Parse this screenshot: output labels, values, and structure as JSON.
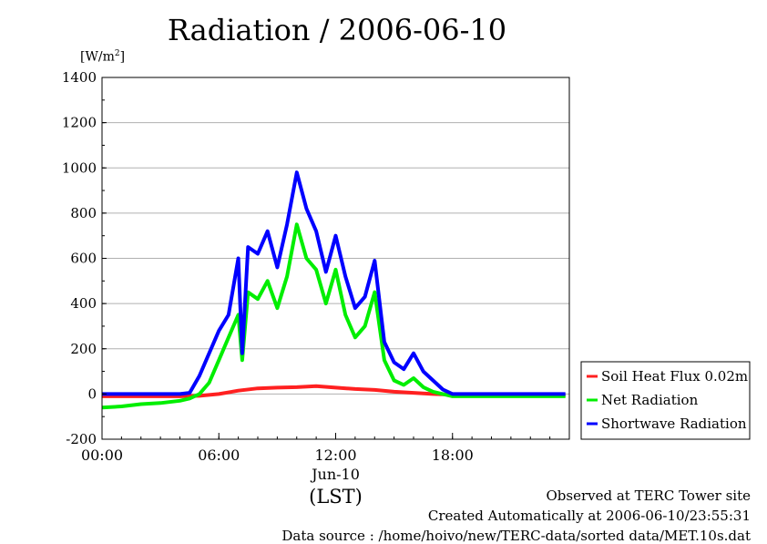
{
  "header": {
    "title": "Radiation / 2006-06-10"
  },
  "footer": {
    "line1": "Observed at TERC Tower site",
    "line2": "Created Automatically at 2006-06-10/23:55:31",
    "line3": "Data source : /home/hoivo/new/TERC-data/sorted  data/MET.10s.dat"
  },
  "colors": {
    "soil": "#ff2020",
    "net": "#00ee00",
    "shortwave": "#0000ff",
    "grid": "#b0b0b0"
  },
  "chart_data": {
    "type": "line",
    "title": "Radiation / 2006-06-10",
    "ylabel_unit": "[W/m2]",
    "ylim": [
      -200,
      1400
    ],
    "xlim": [
      0,
      24
    ],
    "y_ticks": [
      -200,
      0,
      200,
      400,
      600,
      800,
      1000,
      1200,
      1400
    ],
    "x_ticks": [
      {
        "x": 0,
        "label": "00:00"
      },
      {
        "x": 6,
        "label": "06:00"
      },
      {
        "x": 12,
        "label": "12:00"
      },
      {
        "x": 18,
        "label": "18:00"
      }
    ],
    "x_date_label": "Jun-10",
    "x_tz_label": "(LST)",
    "grid": true,
    "legend_position": "right",
    "series": [
      {
        "name": "Soil Heat Flux 0.02m",
        "color_key": "soil",
        "x": [
          0,
          2,
          4,
          5,
          6,
          7,
          8,
          9,
          10,
          11,
          12,
          13,
          14,
          15,
          16,
          17,
          18,
          20,
          22,
          23.8
        ],
        "y": [
          -10,
          -10,
          -10,
          -8,
          0,
          15,
          25,
          28,
          30,
          35,
          28,
          22,
          18,
          10,
          5,
          0,
          -3,
          -5,
          -5,
          -5
        ]
      },
      {
        "name": "Net Radiation",
        "color_key": "net",
        "x": [
          0,
          1,
          2,
          3,
          4,
          4.5,
          5,
          5.5,
          6,
          6.5,
          7,
          7.2,
          7.5,
          8,
          8.5,
          9,
          9.5,
          10,
          10.5,
          11,
          11.5,
          12,
          12.5,
          13,
          13.5,
          14,
          14.5,
          15,
          15.5,
          16,
          16.5,
          17,
          18,
          20,
          22,
          23.8
        ],
        "y": [
          -60,
          -55,
          -45,
          -40,
          -30,
          -20,
          0,
          50,
          150,
          250,
          350,
          150,
          450,
          420,
          500,
          380,
          520,
          750,
          600,
          550,
          400,
          550,
          350,
          250,
          300,
          450,
          150,
          60,
          40,
          70,
          30,
          10,
          -10,
          -10,
          -10,
          -10
        ]
      },
      {
        "name": "Shortwave Radiation",
        "color_key": "shortwave",
        "x": [
          0,
          2,
          4,
          4.5,
          5,
          5.5,
          6,
          6.5,
          7,
          7.2,
          7.5,
          8,
          8.5,
          9,
          9.5,
          10,
          10.5,
          11,
          11.5,
          12,
          12.5,
          13,
          13.5,
          14,
          14.5,
          15,
          15.5,
          16,
          16.5,
          17,
          17.5,
          18,
          20,
          22,
          23.8
        ],
        "y": [
          0,
          0,
          0,
          5,
          80,
          180,
          280,
          350,
          600,
          180,
          650,
          620,
          720,
          560,
          750,
          980,
          820,
          720,
          540,
          700,
          520,
          380,
          430,
          590,
          230,
          140,
          110,
          180,
          100,
          60,
          20,
          0,
          0,
          0,
          0
        ]
      }
    ]
  }
}
